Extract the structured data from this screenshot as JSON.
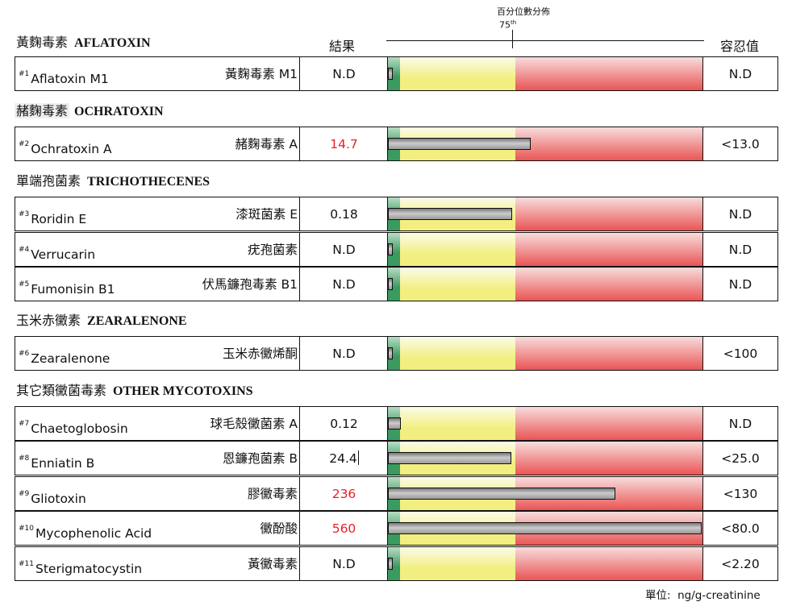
{
  "header": {
    "result_label": "結果",
    "percentile_label": "百分位數分佈",
    "percentile_mark": "75",
    "percentile_suffix": "th",
    "tolerance_label": "容忍值"
  },
  "colors": {
    "high_value": "#e8202a",
    "zone_green": "#3a9a60",
    "zone_yellow": "#f2ef80",
    "zone_red": "#ea5555"
  },
  "sections": [
    {
      "zh": "黃麴毒素",
      "en": "AFLATOXIN",
      "rows": [
        0
      ]
    },
    {
      "zh": "赭麴毒素",
      "en": "OCHRATOXIN",
      "rows": [
        1
      ]
    },
    {
      "zh": "單端孢菌素",
      "en": "TRICHOTHECENES",
      "rows": [
        2,
        3,
        4
      ]
    },
    {
      "zh": "玉米赤黴素",
      "en": "ZEARALENONE",
      "rows": [
        5
      ]
    },
    {
      "zh": "其它類黴菌毒素",
      "en": "OTHER MYCOTOXINS",
      "rows": [
        6,
        7,
        8,
        9,
        10
      ]
    }
  ],
  "rows": [
    {
      "num": "#1",
      "name": "Aflatoxin M1",
      "zh": "黃麴毒素 M1",
      "result": "N.D",
      "high": false,
      "level": 0.013,
      "tolerance": "N.D"
    },
    {
      "num": "#2",
      "name": "Ochratoxin A",
      "zh": "赭麴毒素 A",
      "result": "14.7",
      "high": true,
      "level": 0.454,
      "tolerance": "<13.0"
    },
    {
      "num": "#3",
      "name": "Roridin E",
      "zh": "漆斑菌素 E",
      "result": "0.18",
      "high": false,
      "level": 0.395,
      "tolerance": "N.D"
    },
    {
      "num": "#4",
      "name": "Verrucarin",
      "zh": "疣孢菌素",
      "result": "N.D",
      "high": false,
      "level": 0.013,
      "tolerance": "N.D"
    },
    {
      "num": "#5",
      "name": "Fumonisin B1",
      "zh": "伏馬鐮孢毒素 B1",
      "result": "N.D",
      "high": false,
      "level": 0.013,
      "tolerance": "N.D"
    },
    {
      "num": "#6",
      "name": "Zearalenone",
      "zh": "玉米赤黴烯酮",
      "result": "N.D",
      "high": false,
      "level": 0.013,
      "tolerance": "<100"
    },
    {
      "num": "#7",
      "name": "Chaetoglobosin",
      "zh": "球毛殼黴菌素 A",
      "result": "0.12",
      "high": false,
      "level": 0.04,
      "tolerance": "N.D"
    },
    {
      "num": "#8",
      "name": "Enniatin B",
      "zh": "恩鐮孢菌素 B",
      "result": "24.4",
      "high": false,
      "level": 0.393,
      "tolerance": "<25.0",
      "caret": true
    },
    {
      "num": "#9",
      "name": "Gliotoxin",
      "zh": "膠黴毒素",
      "result": "236",
      "high": true,
      "level": 0.724,
      "tolerance": "<130"
    },
    {
      "num": "#10",
      "name": "Mycophenolic Acid",
      "zh": "黴酚酸",
      "result": "560",
      "high": true,
      "level": 1.0,
      "tolerance": "<80.0"
    },
    {
      "num": "#11",
      "name": "Sterigmatocystin",
      "zh": "黃黴毒素",
      "result": "N.D",
      "high": false,
      "level": 0.013,
      "tolerance": "<2.20"
    }
  ],
  "unit": "單位:  ng/g-creatinine"
}
